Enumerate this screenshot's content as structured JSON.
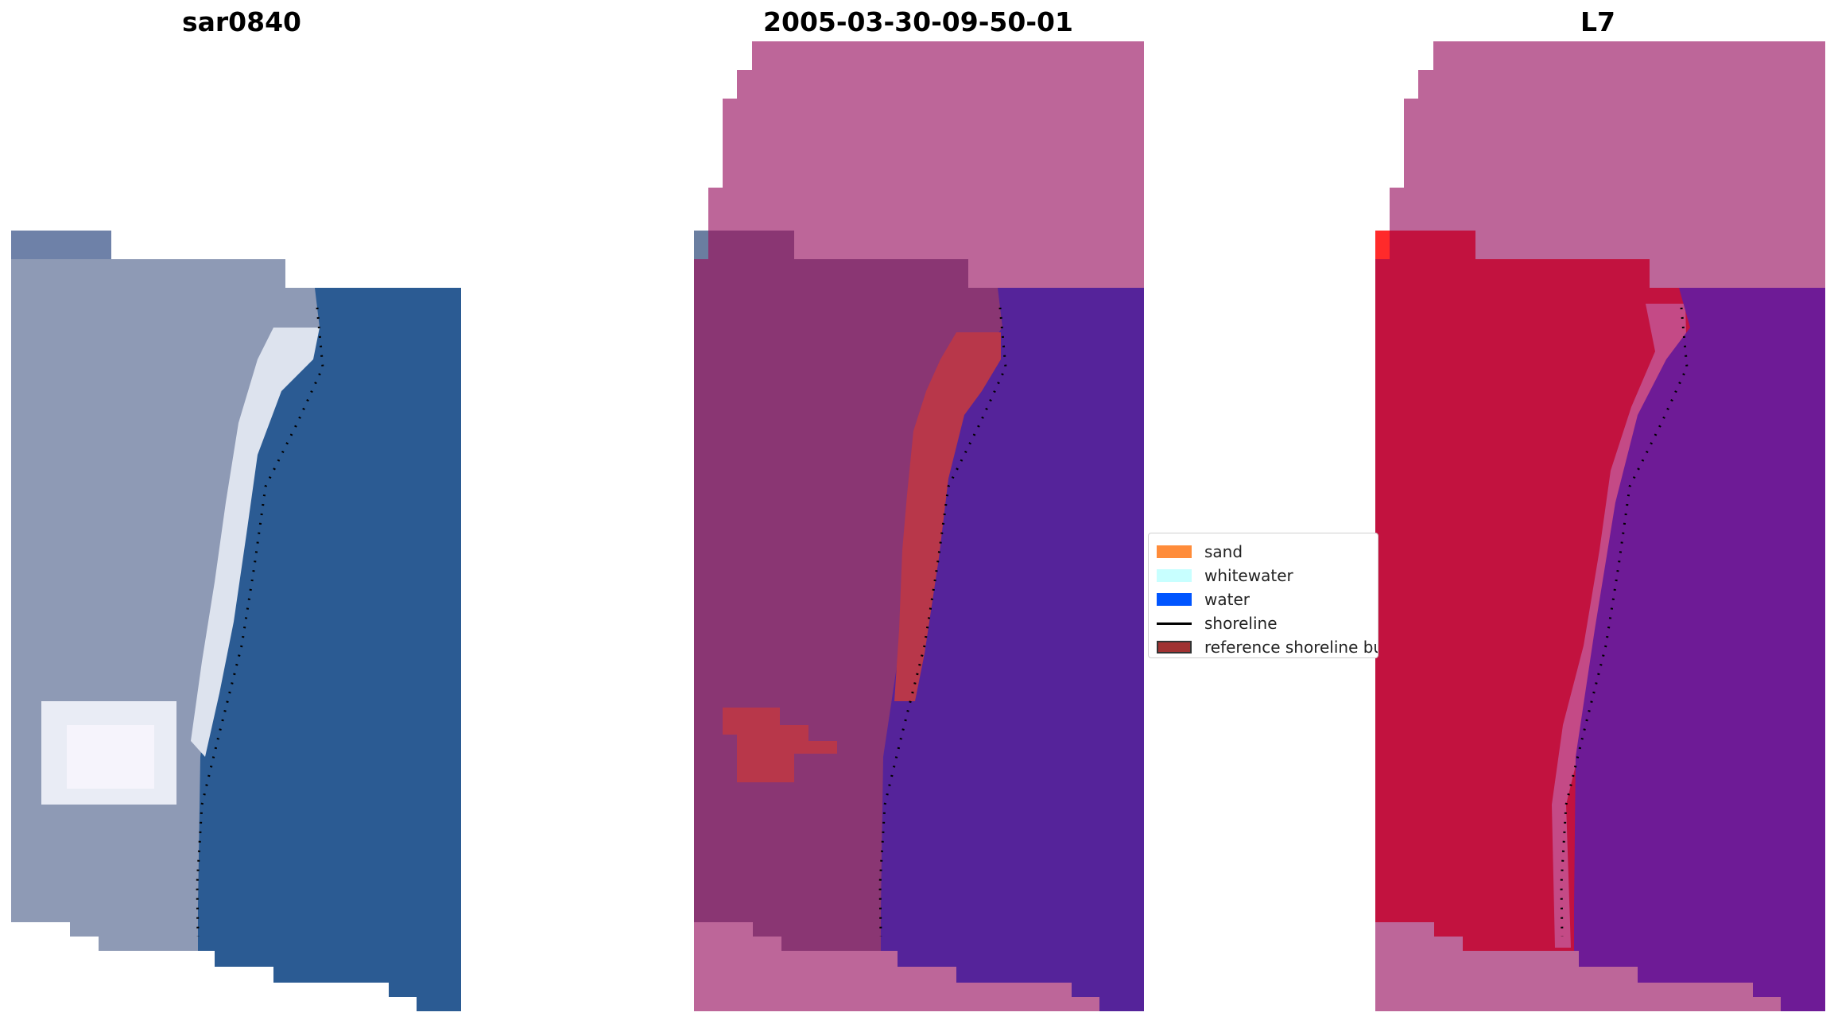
{
  "panels": [
    {
      "title": "sar0840",
      "view": "rgb"
    },
    {
      "title": "2005-03-30-09-50-01",
      "view": "classified"
    },
    {
      "title": "L7",
      "view": "index"
    }
  ],
  "legend": {
    "items": [
      {
        "label": "sand",
        "color": "#ff8c3a",
        "kind": "patch"
      },
      {
        "label": "whitewater",
        "color": "#c8ffff",
        "kind": "patch"
      },
      {
        "label": "water",
        "color": "#0055ff",
        "kind": "patch"
      },
      {
        "label": "shoreline",
        "color": "#000000",
        "kind": "line"
      },
      {
        "label": "reference shoreline buffer",
        "color": "#a03232",
        "kind": "box"
      }
    ]
  },
  "colors": {
    "land_rgb": "#8e9ab5",
    "water_rgb": "#2b5b93",
    "whitewater_rgb": "#e6ecf4",
    "mask": "#bd6699",
    "land_classified": "#8a3673",
    "water_classified": "#55239a",
    "buffer": "#b8374a",
    "land_index": "#c2123f",
    "water_index": "#6e1b96"
  }
}
